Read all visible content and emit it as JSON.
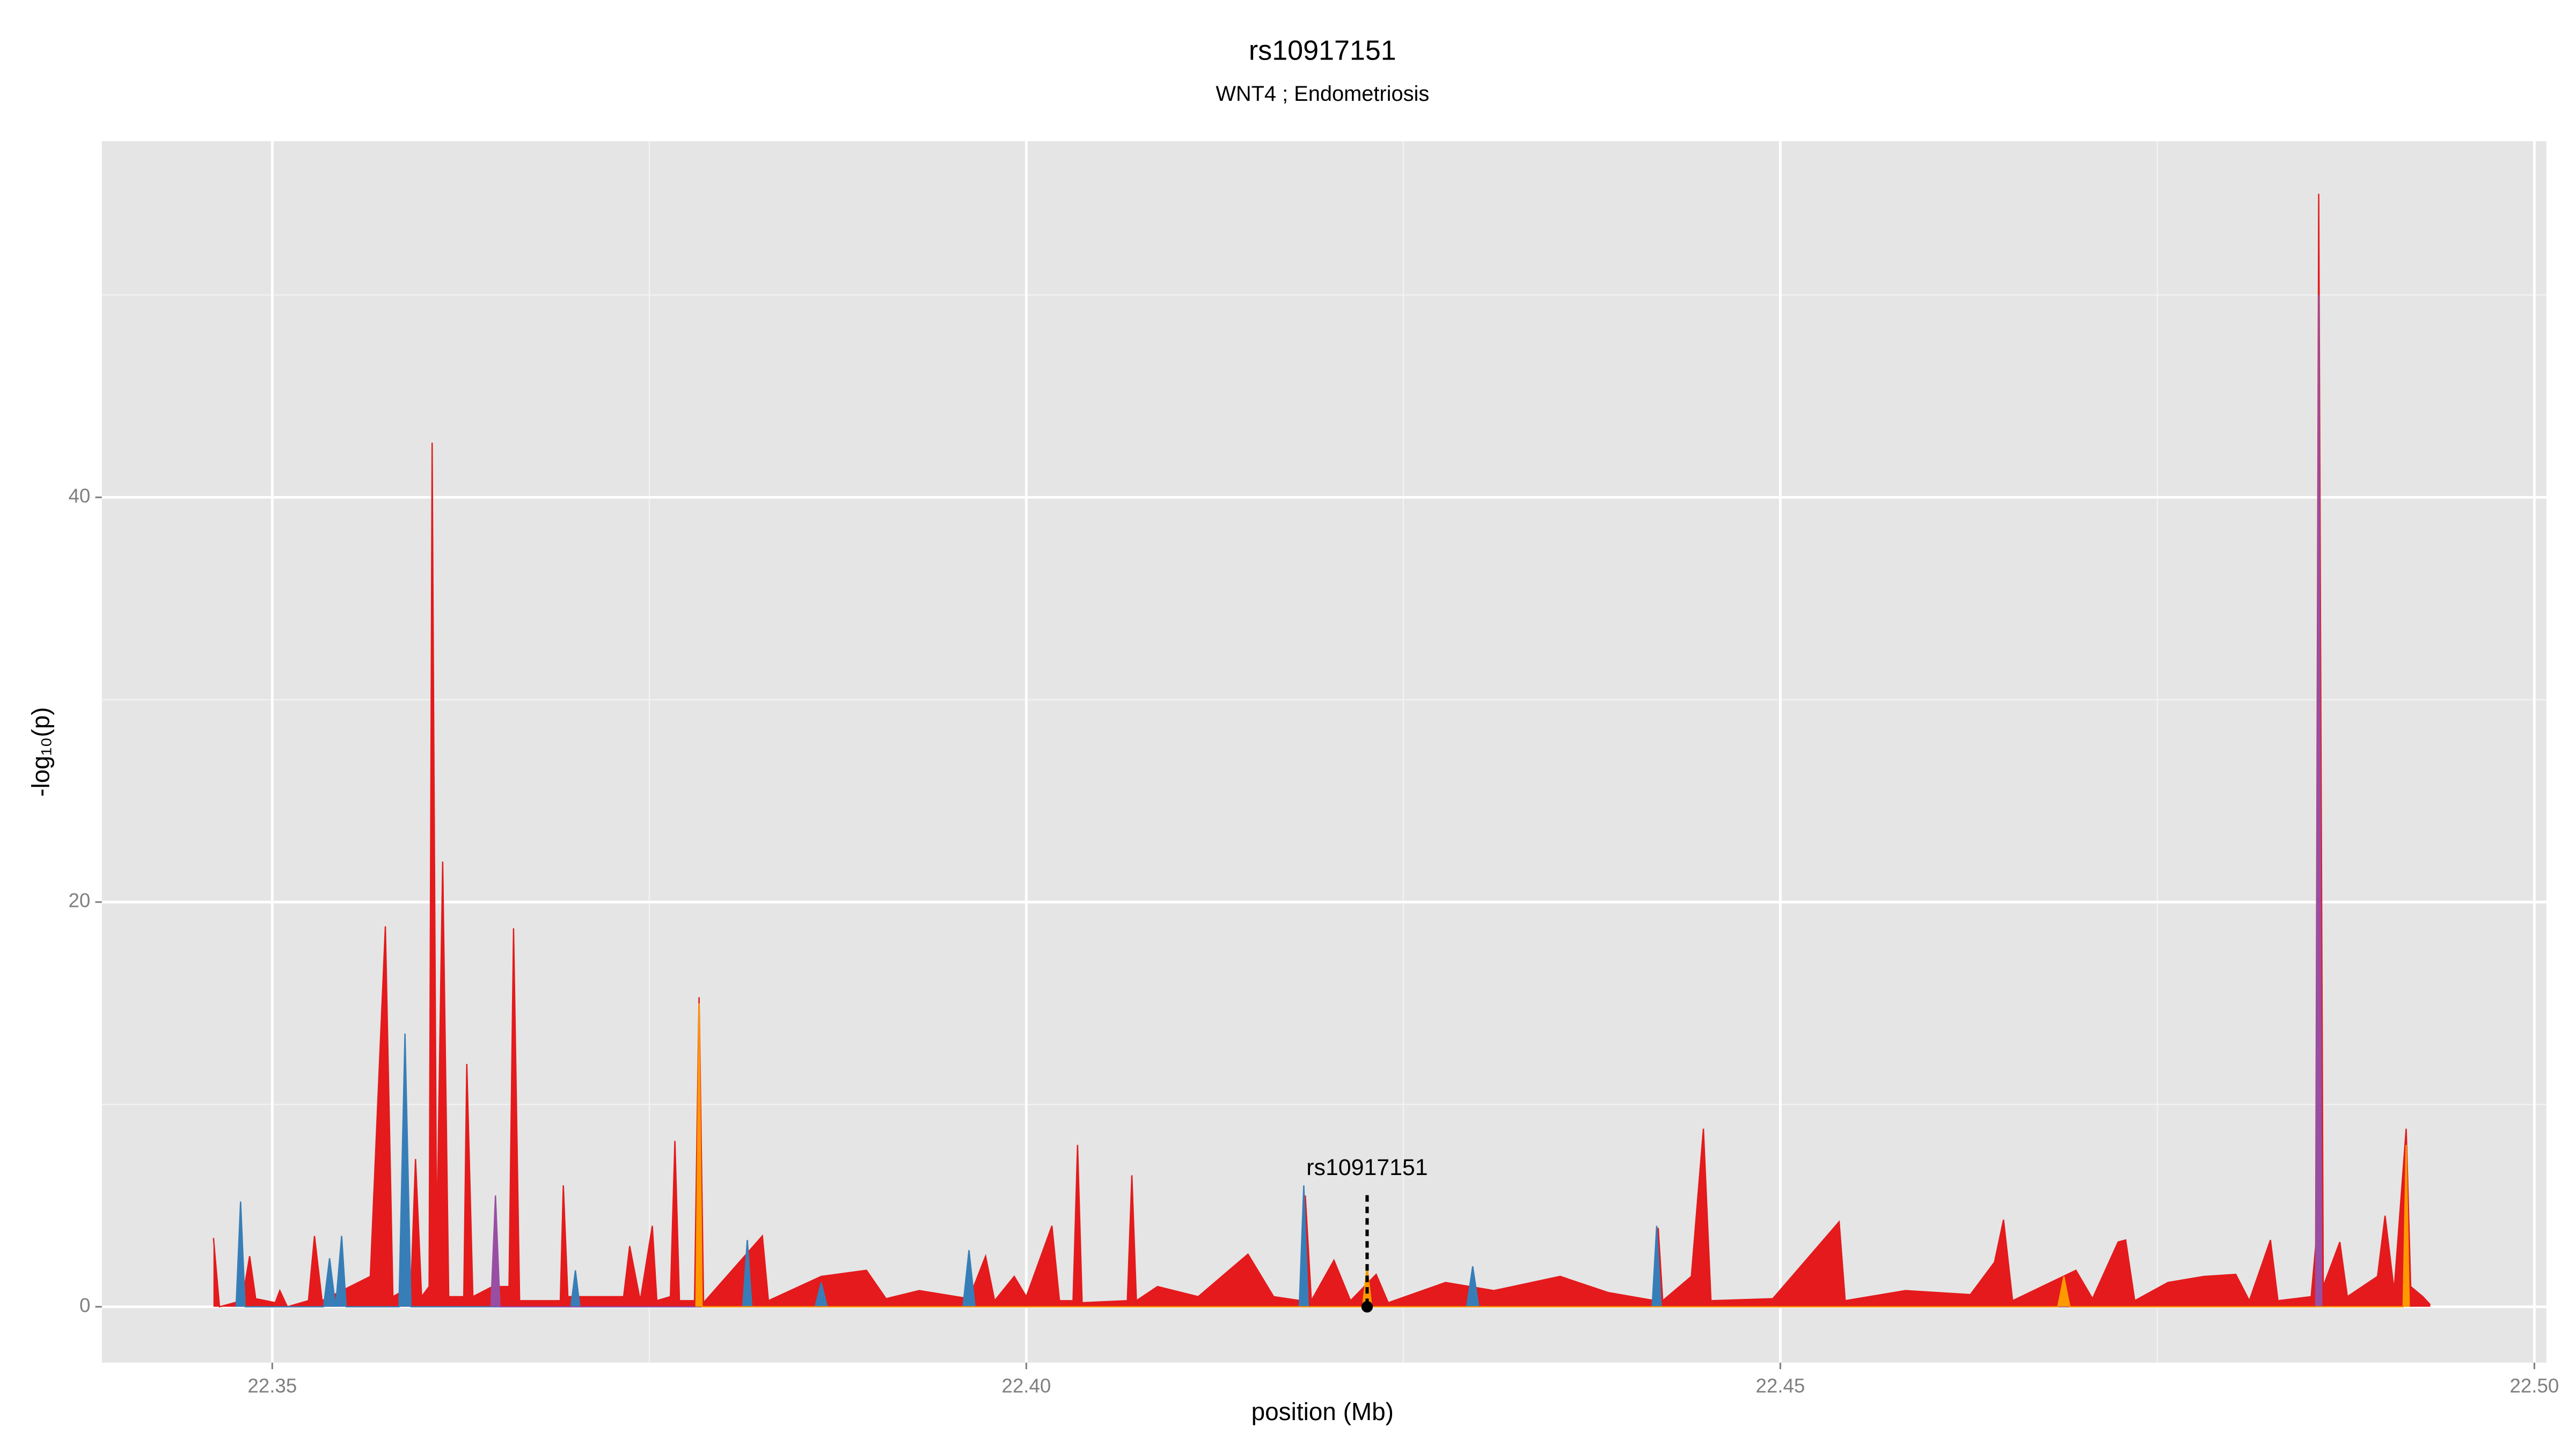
{
  "chart_data": {
    "type": "area",
    "title": "rs10917151",
    "subtitle": "WNT4 ; Endometriosis",
    "xlabel": "position (Mb)",
    "ylabel": "-log₁₀(p)",
    "xlim": [
      22.3387,
      22.5008
    ],
    "ylim": [
      -2.76,
      57.6
    ],
    "xticks": [
      22.35,
      {
        "value": 22.4,
        "label": "22.40"
      },
      22.45,
      {
        "value": 22.5,
        "label": "22.50"
      }
    ],
    "yticks": [
      0,
      20,
      40
    ],
    "x_minor_grid": [
      22.375,
      22.425,
      22.475
    ],
    "y_minor_grid": [
      10,
      30,
      50
    ],
    "grid": true,
    "series": [
      {
        "color": "#e41a1c",
        "x": [
          22.3461,
          22.3465,
          22.348,
          22.3485,
          22.3489,
          22.3502,
          22.3505,
          22.351,
          22.3524,
          22.3528,
          22.3533,
          22.3565,
          22.3575,
          22.358,
          22.3592,
          22.3595,
          22.3599,
          22.3604,
          22.3606,
          22.3609,
          22.3613,
          22.3617,
          22.3627,
          22.3629,
          22.3633,
          22.3646,
          22.3657,
          22.366,
          22.3664,
          22.3691,
          22.3693,
          22.3696,
          22.3733,
          22.3737,
          22.3744,
          22.3752,
          22.3755,
          22.3764,
          22.3767,
          22.377,
          22.378,
          22.3783,
          22.3786,
          22.3825,
          22.3829,
          22.3864,
          22.3894,
          22.3907,
          22.3929,
          22.3962,
          22.3973,
          22.3979,
          22.3992,
          22.4,
          22.4017,
          22.4022,
          22.4031,
          22.4034,
          22.4037,
          22.4067,
          22.407,
          22.4073,
          22.4087,
          22.4114,
          22.4147,
          22.4164,
          22.4182,
          22.4185,
          22.4189,
          22.4204,
          22.4215,
          22.4232,
          22.424,
          22.4278,
          22.431,
          22.4354,
          22.4386,
          22.4417,
          22.4419,
          22.4422,
          22.4441,
          22.4449,
          22.4454,
          22.4495,
          22.4539,
          22.4543,
          22.4583,
          22.4626,
          22.4642,
          22.4648,
          22.4654,
          22.4696,
          22.4707,
          22.4724,
          22.4729,
          22.4735,
          22.4757,
          22.4781,
          22.4802,
          22.4811,
          22.4825,
          22.483,
          22.4852,
          22.4855,
          22.4857,
          22.486,
          22.4871,
          22.4876,
          22.4896,
          22.4901,
          22.4907,
          22.4915,
          22.4918,
          22.4926,
          22.4931
        ],
        "values": [
          3.4,
          0,
          0.3,
          2.5,
          0.4,
          0.2,
          0.8,
          0,
          0.3,
          3.5,
          0.3,
          1.5,
          18.8,
          0.5,
          1,
          7.3,
          0.5,
          1,
          42.7,
          3,
          22,
          0.5,
          0.5,
          12,
          0.5,
          1,
          1,
          18.7,
          0.3,
          0.3,
          6,
          0.5,
          0.5,
          3,
          0.3,
          4,
          0.3,
          0.5,
          8.2,
          0.3,
          0.3,
          15.3,
          0.2,
          3.5,
          0.3,
          1.5,
          1.8,
          0.4,
          0.8,
          0.4,
          2.5,
          0.3,
          1.5,
          0.5,
          4,
          0.3,
          0.3,
          8,
          0.2,
          0.3,
          6.5,
          0.3,
          1,
          0.5,
          2.6,
          0.5,
          0.3,
          5.5,
          0.3,
          2.3,
          0.3,
          1.6,
          0.2,
          1.2,
          0.8,
          1.5,
          0.7,
          0.3,
          3.9,
          0.3,
          1.5,
          8.8,
          0.3,
          0.4,
          4.2,
          0.3,
          0.8,
          0.6,
          2.2,
          4.3,
          0.3,
          1.8,
          0.4,
          3.2,
          3.3,
          0.3,
          1.2,
          1.5,
          1.6,
          0.3,
          3.3,
          0.3,
          0.5,
          3,
          55,
          1,
          3.2,
          0.5,
          1.5,
          4.5,
          0.8,
          8.8,
          1,
          0.5,
          0.1
        ]
      },
      {
        "color": "#377eb8",
        "x": [
          22.3476,
          22.3479,
          22.3482,
          22.3534,
          22.3538,
          22.3542,
          22.3546,
          22.3549,
          22.3584,
          22.3588,
          22.3592,
          22.3698,
          22.3701,
          22.3704,
          22.3812,
          22.3815,
          22.3818,
          22.386,
          22.3864,
          22.3868,
          22.3958,
          22.3962,
          22.3966,
          22.4181,
          22.4184,
          22.4187,
          22.4292,
          22.4296,
          22.43,
          22.4415,
          22.4418,
          22.4421
        ],
        "values": [
          0,
          5.2,
          0,
          0,
          2.4,
          0,
          3.5,
          0,
          0,
          13.5,
          0,
          0,
          1.8,
          0,
          0,
          3.3,
          0,
          0,
          1.2,
          0,
          0,
          2.8,
          0,
          0,
          6,
          0,
          0,
          2,
          0,
          0,
          4,
          0
        ]
      },
      {
        "color": "#984ea3",
        "x": [
          22.3645,
          22.3648,
          22.3651,
          22.4855,
          22.4857,
          22.4859
        ],
        "values": [
          0,
          5.5,
          0,
          0,
          50,
          0
        ]
      },
      {
        "color": "#ff9900",
        "x": [
          22.3781,
          22.3783,
          22.3785,
          22.4223,
          22.4226,
          22.4229,
          22.4684,
          22.4688,
          22.4692,
          22.4913,
          22.4915,
          22.4917
        ],
        "values": [
          0,
          15,
          0,
          0,
          2,
          0,
          0,
          1.5,
          0,
          0,
          8,
          0
        ]
      }
    ],
    "annotation": {
      "text": "rs10917151",
      "x": 22.4226,
      "y": 0
    }
  }
}
